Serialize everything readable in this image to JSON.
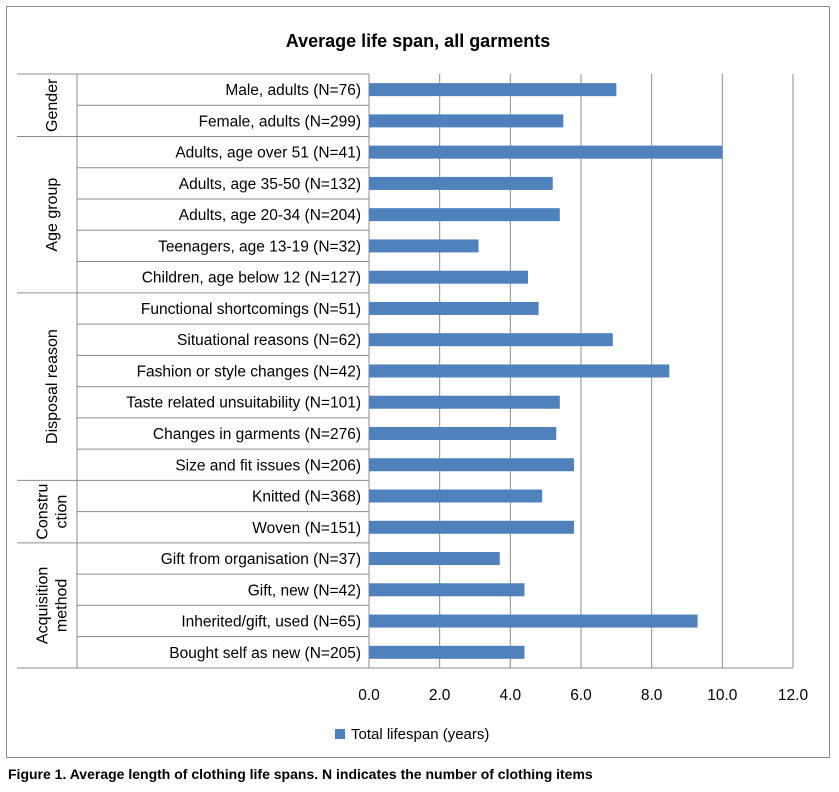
{
  "chart_data": {
    "type": "bar",
    "orientation": "horizontal",
    "title": "Average life span, all garments",
    "groups": [
      {
        "label": "Gender",
        "label_lines": [
          "Gender"
        ],
        "count": 2
      },
      {
        "label": "Age group",
        "label_lines": [
          "Age group"
        ],
        "count": 5
      },
      {
        "label": "Disposal reason",
        "label_lines": [
          "Disposal reason"
        ],
        "count": 6
      },
      {
        "label": "Construction",
        "label_lines": [
          "Constru",
          "ction"
        ],
        "count": 2
      },
      {
        "label": "Acquisition method",
        "label_lines": [
          "Acquisition",
          "method"
        ],
        "count": 4
      }
    ],
    "categories": [
      "Male, adults (N=76)",
      "Female, adults (N=299)",
      "Adults, age over 51 (N=41)",
      "Adults, age 35-50 (N=132)",
      "Adults, age 20-34 (N=204)",
      "Teenagers, age 13-19 (N=32)",
      "Children, age below 12 (N=127)",
      "Functional shortcomings (N=51)",
      "Situational reasons (N=62)",
      "Fashion or style changes (N=42)",
      "Taste related unsuitability (N=101)",
      "Changes in garments (N=276)",
      "Size and fit issues (N=206)",
      "Knitted (N=368)",
      "Woven (N=151)",
      "Gift from organisation (N=37)",
      "Gift, new (N=42)",
      "Inherited/gift, used (N=65)",
      "Bought self as new (N=205)"
    ],
    "series": [
      {
        "name": "Total lifespan (years)",
        "color": "#4f81bd",
        "values": [
          7.0,
          5.5,
          10.0,
          5.2,
          5.4,
          3.1,
          4.5,
          4.8,
          6.9,
          8.5,
          5.4,
          5.3,
          5.8,
          4.9,
          5.8,
          3.7,
          4.4,
          9.3,
          4.4
        ]
      }
    ],
    "xlim": [
      0,
      12
    ],
    "xticks": [
      "0.0",
      "2.0",
      "4.0",
      "6.0",
      "8.0",
      "10.0",
      "12.0"
    ],
    "grid": "vertical",
    "legend": "bottom"
  },
  "caption": "Figure 1. Average length of clothing life spans. N indicates the number of clothing items"
}
